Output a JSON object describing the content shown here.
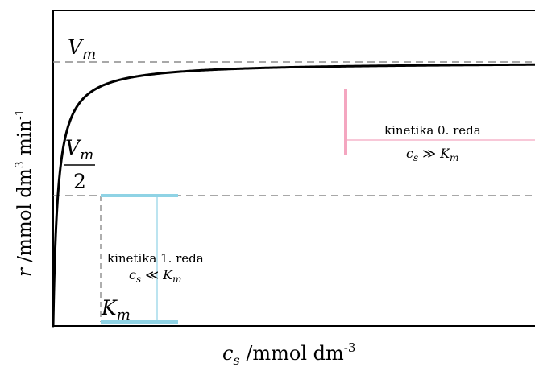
{
  "chart_data": {
    "type": "line",
    "title": "",
    "xlabel": {
      "symbol": "c",
      "subscript": "s",
      "unit": " /mmol dm",
      "exp": "-3"
    },
    "ylabel": {
      "symbol": "r",
      "unit_a": " /mmol dm",
      "exp_a": "3",
      "unit_b": " min",
      "exp_b": "-1"
    },
    "xlim": [
      0,
      10
    ],
    "ylim": [
      0,
      1.1
    ],
    "grid": false,
    "ticks_shown": false,
    "parameters": {
      "Vm": 1.0,
      "Km": 0.1
    },
    "series": [
      {
        "x": [
          0,
          0.02,
          0.05,
          0.1,
          0.2,
          0.5,
          1,
          2,
          3,
          4,
          5,
          6,
          7,
          8,
          9,
          10
        ],
        "y": [
          0,
          0.167,
          0.333,
          0.5,
          0.667,
          0.833,
          0.909,
          0.952,
          0.968,
          0.976,
          0.98,
          0.984,
          0.986,
          0.988,
          0.989,
          0.99
        ],
        "color": "#000000"
      }
    ],
    "reference_lines": [
      {
        "id": "vmax",
        "y": 1.0,
        "style": "dashed",
        "color": "#8c8c8c"
      },
      {
        "id": "half",
        "y": 0.5,
        "style": "dashed",
        "color": "#8c8c8c"
      },
      {
        "id": "km",
        "x": 0.1,
        "from_y": 0,
        "to_y": 0.5,
        "style": "dashed",
        "color": "#8c8c8c"
      }
    ],
    "annotations": {
      "vm_label": {
        "main": "V",
        "sub": "m"
      },
      "half_label": {
        "num_main": "V",
        "num_sub": "m",
        "den": "2"
      },
      "km_label": {
        "main": "K",
        "sub": "m"
      },
      "first_order": {
        "line1": "kinetika 1. reda",
        "rel": {
          "a": "c",
          "a_sub": "s",
          "op": " ≪ ",
          "b": "K",
          "b_sub": "m"
        },
        "color": "#8fd3e5"
      },
      "zero_order": {
        "line1": "kinetika 0. reda",
        "rel": {
          "a": "c",
          "a_sub": "s",
          "op": " ≫ ",
          "b": "K",
          "b_sub": "m"
        },
        "color": "#f4a6c0"
      }
    },
    "colors": {
      "curve": "#000000",
      "axes": "#000000",
      "dashed": "#8c8c8c",
      "cyan": "#8fd3e5",
      "pink": "#f4a6c0"
    }
  }
}
